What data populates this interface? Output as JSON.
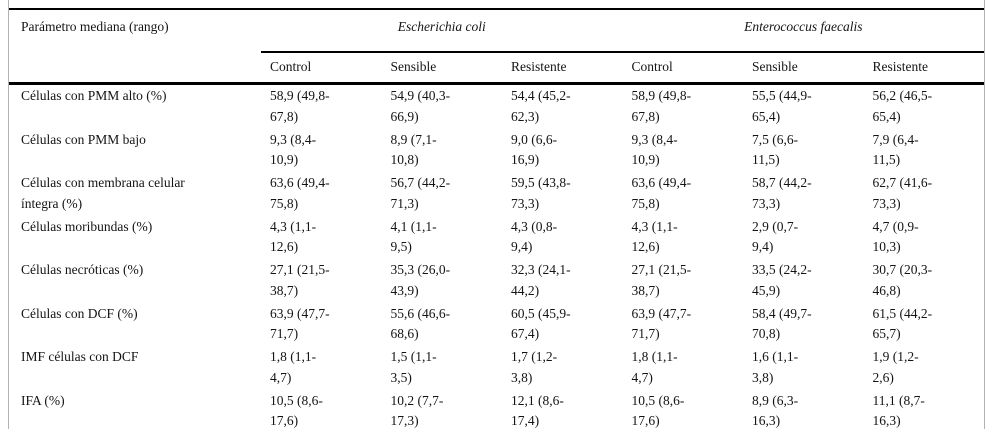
{
  "colors": {
    "rule_black": "#000000",
    "frame_gray": "#b2b2b2",
    "text": "#141414",
    "background": "#ffffff"
  },
  "table": {
    "corner_header": "Parámetro mediana (rango)",
    "groups": [
      {
        "label": "Escherichia coli",
        "columns": [
          "Control",
          "Sensible",
          "Resistente"
        ]
      },
      {
        "label": "Enterococcus faecalis",
        "columns": [
          "Control",
          "Sensible",
          "Resistente"
        ]
      }
    ],
    "rows": [
      {
        "label": "Células con PMM alto (%)",
        "values": [
          "58,9 (49,8-\n67,8)",
          "54,9 (40,3-\n66,9)",
          "54,4 (45,2-\n62,3)",
          "58,9 (49,8-\n67,8)",
          "55,5 (44,9-\n65,4)",
          "56,2 (46,5-\n65,4)"
        ]
      },
      {
        "label": "Células con PMM bajo",
        "values": [
          "9,3 (8,4-\n10,9)",
          "8,9 (7,1-\n10,8)",
          "9,0 (6,6-\n16,9)",
          "9,3 (8,4-\n10,9)",
          "7,5 (6,6-\n11,5)",
          "7,9 (6,4-\n11,5)"
        ]
      },
      {
        "label": "Células con membrana celular\níntegra (%)",
        "values": [
          "63,6 (49,4-\n75,8)",
          "56,7 (44,2-\n71,3)",
          "59,5 (43,8-\n73,3)",
          "63,6 (49,4-\n75,8)",
          "58,7 (44,2-\n73,3)",
          "62,7 (41,6-\n73,3)"
        ]
      },
      {
        "label": "Células moribundas (%)",
        "values": [
          "4,3 (1,1-\n12,6)",
          "4,1 (1,1-\n9,5)",
          "4,3 (0,8-\n9,4)",
          "4,3 (1,1-\n12,6)",
          "2,9 (0,7-\n9,4)",
          "4,7 (0,9-\n10,3)"
        ]
      },
      {
        "label": "Células necróticas (%)",
        "values": [
          "27,1 (21,5-\n38,7)",
          "35,3 (26,0-\n43,9)",
          "32,3 (24,1-\n44,2)",
          "27,1 (21,5-\n38,7)",
          "33,5 (24,2-\n45,9)",
          "30,7 (20,3-\n46,8)"
        ]
      },
      {
        "label": "Células con DCF (%)",
        "values": [
          "63,9 (47,7-\n71,7)",
          "55,6 (46,6-\n68,6)",
          "60,5 (45,9-\n67,4)",
          "63,9 (47,7-\n71,7)",
          "58,4 (49,7-\n70,8)",
          "61,5 (44,2-\n65,7)"
        ]
      },
      {
        "label": "IMF células con DCF",
        "values": [
          "1,8 (1,1-\n4,7)",
          "1,5 (1,1-\n3,5)",
          "1,7 (1,2-\n3,8)",
          "1,8 (1,1-\n4,7)",
          "1,6 (1,1-\n3,8)",
          "1,9 (1,2-\n2,6)"
        ]
      },
      {
        "label": "IFA (%)",
        "values": [
          "10,5 (8,6-\n17,6)",
          "10,2 (7,7-\n17,3)",
          "12,1 (8,6-\n17,4)",
          "10,5 (8,6-\n17,6)",
          "8,9 (6,3-\n16,3)",
          "11,1 (8,7-\n16,3)"
        ]
      }
    ]
  }
}
